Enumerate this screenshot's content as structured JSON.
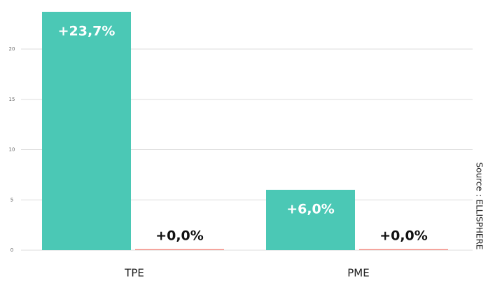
{
  "chart_data": {
    "type": "bar",
    "categories": [
      "TPE",
      "PME"
    ],
    "series": [
      {
        "color": "#4bc8b5",
        "values": [
          23.7,
          6.0
        ],
        "value_labels": [
          "+23,7%",
          "+6,0%"
        ]
      },
      {
        "color": "#f28b82",
        "values": [
          0,
          0
        ],
        "value_labels": [
          "+0,0%",
          "+0,0%"
        ]
      }
    ],
    "ylim": [
      0,
      24
    ],
    "yticks": [
      0,
      5,
      10,
      15,
      20
    ],
    "grid": true,
    "source": "Source : ELLISPHERE"
  }
}
